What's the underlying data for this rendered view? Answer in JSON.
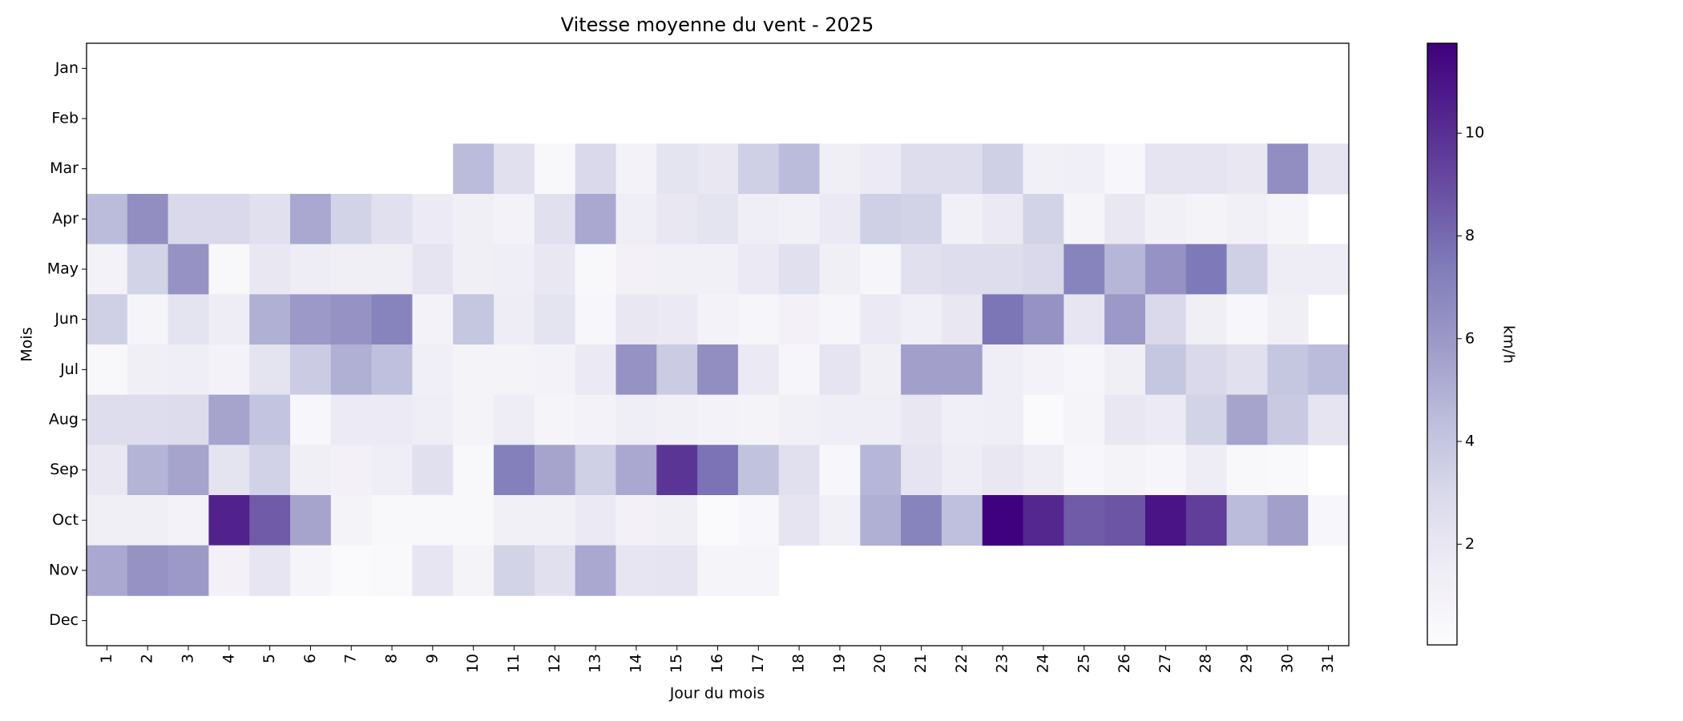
{
  "chart_data": {
    "type": "heatmap",
    "title": "Vitesse moyenne du vent - 2025",
    "xlabel": "Jour du mois",
    "ylabel": "Mois",
    "colorbar_label": "km/h",
    "x": [
      1,
      2,
      3,
      4,
      5,
      6,
      7,
      8,
      9,
      10,
      11,
      12,
      13,
      14,
      15,
      16,
      17,
      18,
      19,
      20,
      21,
      22,
      23,
      24,
      25,
      26,
      27,
      28,
      29,
      30,
      31
    ],
    "y": [
      "Jan",
      "Feb",
      "Mar",
      "Apr",
      "May",
      "Jun",
      "Jul",
      "Aug",
      "Sep",
      "Oct",
      "Nov",
      "Dec"
    ],
    "values": [
      [
        null,
        null,
        null,
        null,
        null,
        null,
        null,
        null,
        null,
        null,
        null,
        null,
        null,
        null,
        null,
        null,
        null,
        null,
        null,
        null,
        null,
        null,
        null,
        null,
        null,
        null,
        null,
        null,
        null,
        null,
        null
      ],
      [
        null,
        null,
        null,
        null,
        null,
        null,
        null,
        null,
        null,
        null,
        null,
        null,
        null,
        null,
        null,
        null,
        null,
        null,
        null,
        null,
        null,
        null,
        null,
        null,
        null,
        null,
        null,
        null,
        null,
        null,
        null
      ],
      [
        null,
        null,
        null,
        null,
        null,
        null,
        null,
        null,
        null,
        4.5,
        2.5,
        0.5,
        3,
        1,
        2.3,
        2,
        3.5,
        4.5,
        1.3,
        1.7,
        2.7,
        2.7,
        3.5,
        1.2,
        1.4,
        0.6,
        2.2,
        2.2,
        2,
        6.5,
        2.2
      ],
      [
        4.5,
        6.5,
        3,
        3,
        2.5,
        5.3,
        3.3,
        2.5,
        1.7,
        1.3,
        1,
        2.5,
        5.3,
        1.5,
        1.9,
        2.3,
        1.5,
        1.2,
        1.8,
        3.5,
        3.3,
        1.2,
        1.8,
        3.3,
        0.8,
        2,
        1.2,
        0.9,
        1.2,
        0.8,
        null
      ],
      [
        1,
        3.3,
        6.3,
        0.5,
        1.9,
        1.6,
        1.3,
        1.3,
        2.2,
        1.3,
        1.5,
        2,
        0.5,
        1.1,
        1.2,
        1.2,
        1.8,
        2.5,
        1.3,
        0.7,
        2.5,
        2.7,
        2.7,
        3,
        7,
        4.7,
        6.3,
        7.5,
        3.5,
        1.6,
        1.6
      ],
      [
        3.5,
        0.8,
        2.3,
        1.6,
        5,
        6,
        6.3,
        7,
        1,
        4,
        1.6,
        2.3,
        0.6,
        2,
        1.8,
        1,
        0.7,
        1.1,
        0.7,
        1.8,
        1.4,
        2,
        7.6,
        6.3,
        2.1,
        6,
        3,
        1.3,
        0.6,
        1.3,
        null
      ],
      [
        0.5,
        1.3,
        1.5,
        1,
        2.3,
        3.7,
        5,
        4.3,
        1.4,
        0.9,
        0.9,
        1,
        1.8,
        6.3,
        3.7,
        6.5,
        1.8,
        0.7,
        2.2,
        1.3,
        5.7,
        5.7,
        1.5,
        1,
        0.7,
        1.3,
        4,
        3,
        2.5,
        4,
        4.5
      ],
      [
        2.7,
        2.7,
        2.8,
        5.5,
        4.1,
        0.6,
        1.7,
        1.7,
        1.5,
        0.9,
        1.6,
        0.8,
        1,
        1.5,
        1.2,
        1,
        0.9,
        1.2,
        1.5,
        1.5,
        2,
        1.4,
        1.5,
        0.3,
        0.8,
        2,
        1.7,
        3.3,
        5.5,
        3.8,
        2.2
      ],
      [
        2,
        4.8,
        5.5,
        2.3,
        3.4,
        1.3,
        1.1,
        1.5,
        2.5,
        0.5,
        7.2,
        5.5,
        3.5,
        5.3,
        9.8,
        7.7,
        4.2,
        2.5,
        0.6,
        4.7,
        2.2,
        1.6,
        2,
        1.6,
        0.6,
        0.9,
        0.7,
        1.6,
        0.5,
        0.4,
        null
      ],
      [
        1.3,
        1.3,
        1,
        10.5,
        8.5,
        5.5,
        0.9,
        0.5,
        0.5,
        0.5,
        1.2,
        1.2,
        1.8,
        1.1,
        1.3,
        0.3,
        0.6,
        2.2,
        1.2,
        5,
        7,
        4.3,
        11.7,
        10.3,
        8.5,
        8.7,
        11,
        9.5,
        4.5,
        5.7,
        0.6
      ],
      [
        5.3,
        6.3,
        6,
        1.1,
        2.1,
        0.8,
        0.3,
        0.4,
        2.1,
        0.9,
        3.3,
        2.5,
        5.3,
        2.1,
        2.2,
        0.8,
        0.8,
        null,
        null,
        null,
        null,
        null,
        null,
        null,
        null,
        null,
        null,
        null,
        null,
        null,
        null
      ],
      [
        null,
        null,
        null,
        null,
        null,
        null,
        null,
        null,
        null,
        null,
        null,
        null,
        null,
        null,
        null,
        null,
        null,
        null,
        null,
        null,
        null,
        null,
        null,
        null,
        null,
        null,
        null,
        null,
        null,
        null,
        null
      ]
    ],
    "clim": [
      0.04,
      11.75
    ],
    "cticks": [
      2,
      4,
      6,
      8,
      10
    ],
    "colormap": [
      "#fcfbfd",
      "#efedf5",
      "#dadaeb",
      "#bcbddc",
      "#9e9ac8",
      "#807dba",
      "#6a51a3",
      "#54278f",
      "#3f007d"
    ]
  }
}
